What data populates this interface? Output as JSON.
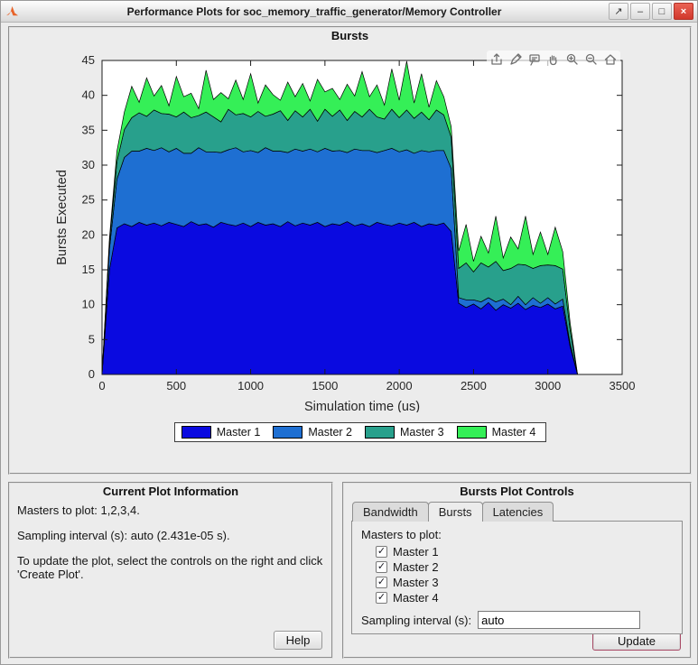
{
  "window": {
    "title": "Performance Plots for soc_memory_traffic_generator/Memory Controller",
    "icons": {
      "undock": "↗",
      "minimize": "–",
      "maximize": "□",
      "close": "×"
    }
  },
  "bursts_panel": {
    "title": "Bursts"
  },
  "axes_toolbar": {
    "icons": [
      "export-icon",
      "brush-icon",
      "datatip-icon",
      "pan-icon",
      "zoom-in-icon",
      "zoom-out-icon",
      "home-icon"
    ]
  },
  "chart_data": {
    "type": "area",
    "stacked": true,
    "title": "Bursts",
    "xlabel": "Simulation time (us)",
    "ylabel": "Bursts Executed",
    "xlim": [
      0,
      3500
    ],
    "ylim": [
      0,
      45
    ],
    "xticks": [
      0,
      500,
      1000,
      1500,
      2000,
      2500,
      3000,
      3500
    ],
    "yticks": [
      0,
      5,
      10,
      15,
      20,
      25,
      30,
      35,
      40,
      45
    ],
    "grid": false,
    "legend_position": "below",
    "x": [
      0,
      50,
      100,
      150,
      200,
      250,
      300,
      350,
      400,
      450,
      500,
      550,
      600,
      650,
      700,
      750,
      800,
      850,
      900,
      950,
      1000,
      1050,
      1100,
      1150,
      1200,
      1250,
      1300,
      1350,
      1400,
      1450,
      1500,
      1550,
      1600,
      1650,
      1700,
      1750,
      1800,
      1850,
      1900,
      1950,
      2000,
      2050,
      2100,
      2150,
      2200,
      2250,
      2300,
      2350,
      2400,
      2450,
      2500,
      2550,
      2600,
      2650,
      2700,
      2750,
      2800,
      2850,
      2900,
      2950,
      3000,
      3050,
      3100,
      3150,
      3200
    ],
    "series": [
      {
        "name": "Master 1",
        "color": "#0a0ae0",
        "values": [
          0,
          15,
          21,
          21.6,
          21.2,
          21.8,
          21.4,
          21.7,
          21.3,
          21.8,
          21.5,
          21.2,
          21.9,
          21.4,
          21.6,
          21.1,
          21.8,
          21.5,
          21.3,
          21.7,
          21.2,
          21.8,
          21.4,
          21.6,
          21.2,
          21.9,
          21.3,
          21.7,
          21.4,
          21.8,
          21.2,
          21.6,
          21.4,
          21.9,
          21.3,
          21.6,
          21.2,
          21.8,
          21.5,
          21.3,
          21.7,
          21.4,
          21.8,
          21.2,
          21.6,
          21.4,
          21.7,
          20.5,
          10.2,
          9.6,
          10.1,
          9.4,
          10.3,
          9.2,
          10,
          9.5,
          10.2,
          9.3,
          9.9,
          9.6,
          10.1,
          9.4,
          9.8,
          4,
          0
        ]
      },
      {
        "name": "Master 2",
        "color": "#1e6fd2",
        "values": [
          0,
          3,
          7,
          9.5,
          10.8,
          10.2,
          11,
          10.4,
          11.2,
          10.1,
          10.9,
          10.5,
          9.8,
          11.1,
          10.3,
          10.8,
          10,
          10.7,
          11.2,
          10.2,
          10.9,
          10,
          11.1,
          10.4,
          10.8,
          9.9,
          11,
          10.3,
          10.9,
          10.1,
          11.2,
          10.4,
          10.7,
          9.9,
          11,
          10.5,
          10.9,
          10,
          10.6,
          11.1,
          10.2,
          10.8,
          9.9,
          10.9,
          10.3,
          10.7,
          10.4,
          9,
          0.8,
          1.1,
          0.6,
          1,
          0.7,
          1.2,
          0.8,
          0.5,
          1,
          0.7,
          1.1,
          0.6,
          0.9,
          0.7,
          1,
          0.4,
          0
        ]
      },
      {
        "name": "Master 3",
        "color": "#28a08c",
        "values": [
          0,
          1,
          2.5,
          4,
          4.8,
          5.5,
          4.6,
          5.8,
          4.9,
          5.4,
          4.5,
          5.9,
          5.1,
          4.6,
          5.7,
          5,
          4.4,
          5.8,
          4.7,
          5.5,
          4.8,
          5.9,
          4.5,
          5.3,
          5.8,
          4.6,
          5.5,
          4.9,
          5.7,
          4.4,
          5.6,
          5,
          5.8,
          4.6,
          5.4,
          4.8,
          5.9,
          5.1,
          4.5,
          5.6,
          4.9,
          5.7,
          5,
          5.5,
          4.6,
          5.8,
          5.1,
          4.5,
          4.2,
          5.3,
          4,
          5.6,
          4.4,
          5.8,
          4.1,
          5.2,
          4.6,
          5.7,
          4.2,
          5.4,
          4.7,
          5.5,
          4.3,
          2,
          0
        ]
      },
      {
        "name": "Master 4",
        "color": "#35ef57",
        "values": [
          0,
          0.5,
          1.5,
          2.5,
          4.5,
          1.5,
          5.5,
          2,
          4,
          1.2,
          5.8,
          2.2,
          3.5,
          1,
          6,
          2.5,
          4.2,
          1.5,
          5,
          2,
          6.2,
          1.2,
          4.5,
          2.8,
          1.5,
          5.5,
          2,
          4.8,
          1.2,
          6,
          2.5,
          4,
          1.5,
          5.2,
          2.2,
          6.5,
          1.8,
          4.6,
          2,
          5.8,
          2.5,
          7,
          2.2,
          5.5,
          1.8,
          4.2,
          2.6,
          1.5,
          2.5,
          5.5,
          1.5,
          3.8,
          2,
          6.5,
          1.8,
          4.5,
          2.2,
          7,
          2,
          4.8,
          1.5,
          5.5,
          2.5,
          1,
          0
        ]
      }
    ]
  },
  "info_panel": {
    "title": "Current Plot Information",
    "line1": "Masters to plot: 1,2,3,4.",
    "line2": "Sampling interval (s): auto (2.431e-05 s).",
    "line3": "To update the plot, select the controls on the right and click 'Create Plot'.",
    "help_label": "Help"
  },
  "controls_panel": {
    "title": "Bursts Plot Controls",
    "tabs": [
      "Bandwidth",
      "Bursts",
      "Latencies"
    ],
    "active_tab": "Bursts",
    "masters_label": "Masters to plot:",
    "checkboxes": [
      {
        "label": "Master 1",
        "checked": true
      },
      {
        "label": "Master 2",
        "checked": true
      },
      {
        "label": "Master 3",
        "checked": true
      },
      {
        "label": "Master 4",
        "checked": true
      }
    ],
    "sampling_label": "Sampling interval (s):",
    "sampling_value": "auto",
    "update_label": "Update"
  }
}
